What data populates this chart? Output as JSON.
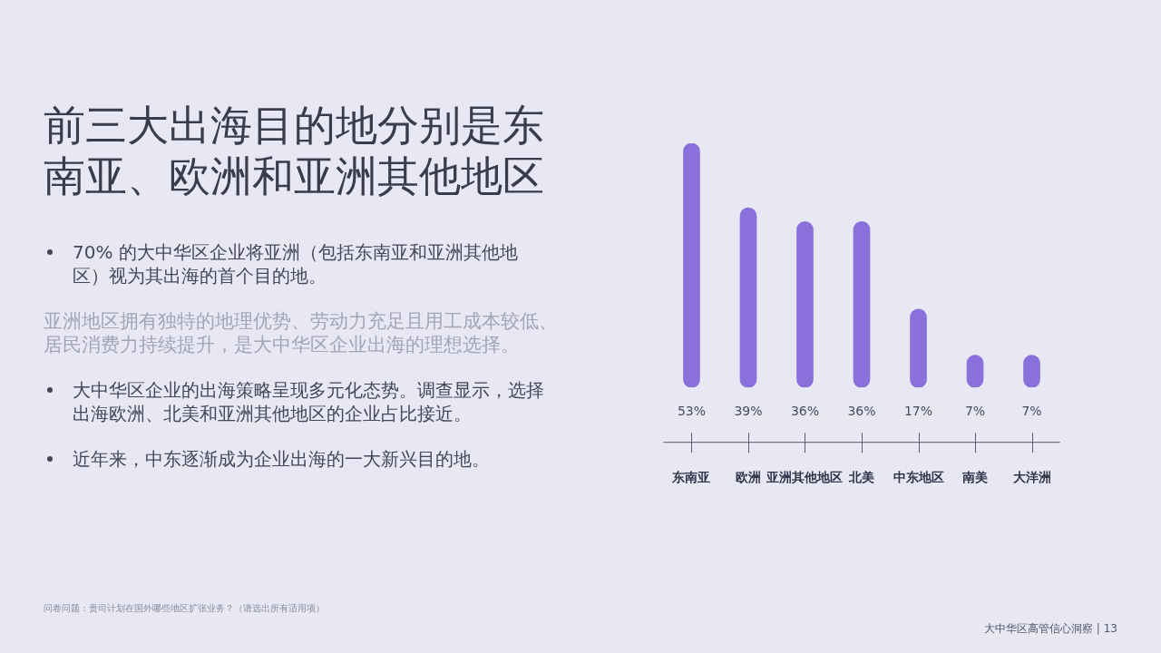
{
  "chart_data": {
    "type": "bar",
    "title": "前三大出海目的地分别是东南亚、欧洲和亚洲其他地区",
    "categories": [
      "东南亚",
      "欧洲",
      "亚洲其他地区",
      "北美",
      "中东地区",
      "南美",
      "大洋洲"
    ],
    "values": [
      53,
      39,
      36,
      36,
      17,
      7,
      7
    ],
    "value_labels": [
      "53%",
      "39%",
      "36%",
      "36%",
      "17%",
      "7%",
      "7%"
    ],
    "color": "#8a70da",
    "annotations": [
      "70% 的大中华区企业将亚洲（包括东南亚和亚洲其他地区）视为其出海的首个目的地。",
      "亚洲地区拥有独特的地理优势、劳动力充足且用工成本较低、居民消费力持续提升，是大中华区企业出海的理想选择。",
      "大中华区企业的出海策略呈现多元化态势。调查显示，选择出海欧洲、北美和亚洲其他地区的企业占比接近。",
      "近年来，中东逐渐成为企业出海的一大新兴目的地。",
      "问卷问题：贵司计划在国外哪些地区扩张业务？（请选出所有适用项）",
      "大中华区高管信心洞察 | 13"
    ]
  }
}
